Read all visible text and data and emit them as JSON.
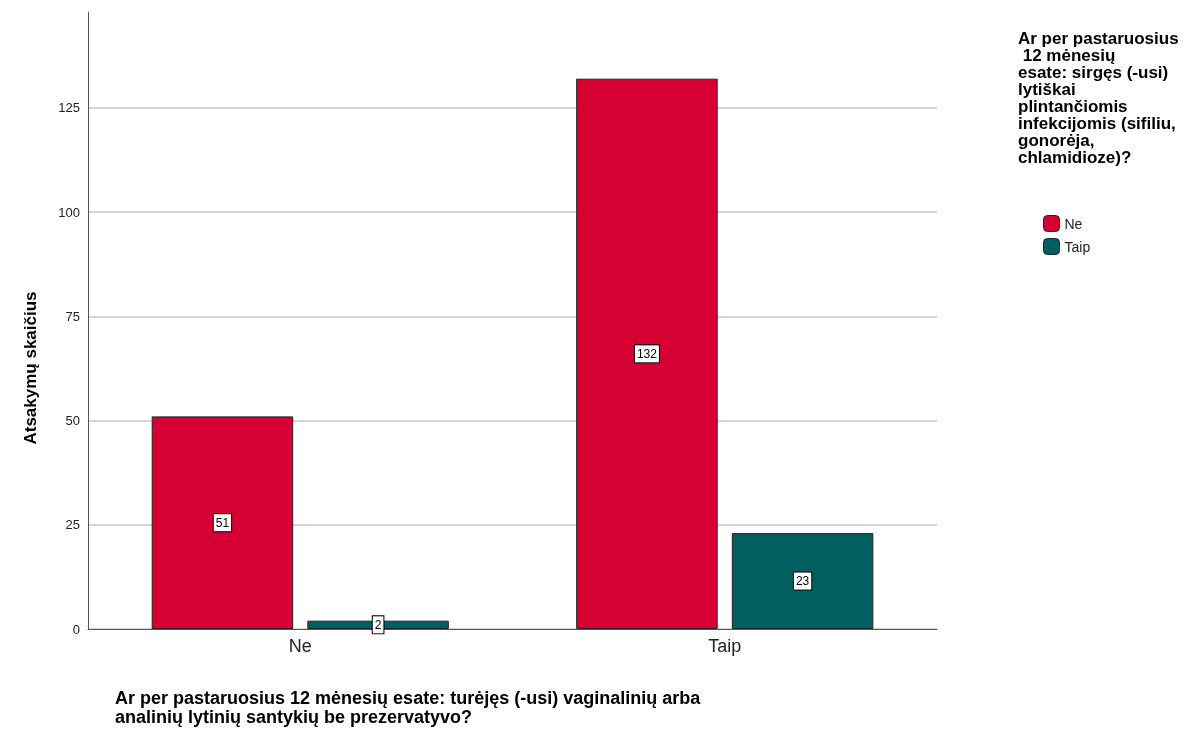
{
  "chart_data": {
    "type": "bar",
    "xlabel": "Ar per pastaruosius 12 mėnesių esate: turėjęs (-usi) vaginalinių arba analinių lytinių santykių be prezervatyvo?",
    "ylabel": "Atsakymų skaičius",
    "legend_title": "Ar per pastaruosius 12 mėnesių esate: sirgęs (-usi) lytiškai plintančiomis infekcijomis (sifiliu, gonorėja, chlamidioze)?",
    "categories": [
      "Ne",
      "Taip"
    ],
    "series": [
      {
        "name": "Ne",
        "color": "#d70033",
        "values": [
          51,
          132
        ]
      },
      {
        "name": "Taip",
        "color": "#005f5f",
        "values": [
          2,
          23
        ]
      }
    ],
    "ylim": [
      0,
      148
    ],
    "yticks": [
      0,
      25,
      50,
      75,
      100,
      125
    ],
    "grid": "y",
    "legend": "top right",
    "data_labels": true
  }
}
